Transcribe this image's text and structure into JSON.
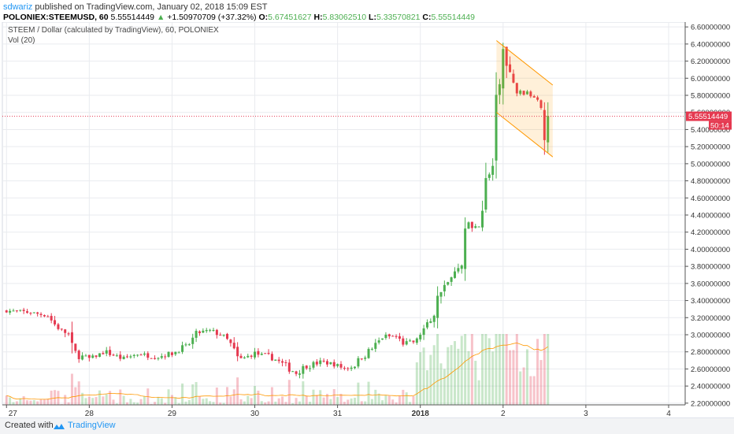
{
  "header": {
    "author": "sdwariz",
    "published_text": "published on TradingView.com, January 02, 2018 15:09 EST",
    "symbol": "POLONIEX:STEEMUSD, 60",
    "last": "5.55514449",
    "change": "+1.50970709 (+37.32%)",
    "o_label": "O:",
    "o": "5.67451627",
    "h_label": "H:",
    "h": "5.83062510",
    "l_label": "L:",
    "l": "5.33570821",
    "c_label": "C:",
    "c": "5.55514449"
  },
  "legend": {
    "title": "STEEM / Dollar (calculated by TradingView), 60, POLONIEX",
    "vol": "Vol (20)"
  },
  "price_label": "5.55514449",
  "countdown": "50:14",
  "footer": {
    "created": "Created with",
    "brand": "TradingView"
  },
  "colors": {
    "up": "#4caf50",
    "down": "#e53950",
    "channel": "#ff9800",
    "grid": "#e9ebef",
    "last_line": "#e53950",
    "volume_ma": "#ff9800"
  },
  "chart_data": {
    "type": "candlestick",
    "title": "STEEM / Dollar (calculated by TradingView), 60, POLONIEX",
    "x_ticks": [
      "27",
      "28",
      "29",
      "30",
      "31",
      "2018",
      "2",
      "3",
      "4"
    ],
    "ylim": [
      2.18,
      6.62
    ],
    "y_ticks": [
      "2.20000000",
      "2.40000000",
      "2.60000000",
      "2.80000000",
      "3.00000000",
      "3.20000000",
      "3.40000000",
      "3.60000000",
      "3.80000000",
      "4.00000000",
      "4.20000000",
      "4.40000000",
      "4.60000000",
      "4.80000000",
      "5.00000000",
      "5.20000000",
      "5.40000000",
      "5.60000000",
      "5.80000000",
      "6.00000000",
      "6.20000000",
      "6.40000000",
      "6.60000000"
    ],
    "last_price": 5.55514449,
    "close_path": [
      [
        27.0,
        3.28
      ],
      [
        27.3,
        3.26
      ],
      [
        27.5,
        3.22
      ],
      [
        27.6,
        3.1
      ],
      [
        27.75,
        3.0
      ],
      [
        27.8,
        2.78
      ],
      [
        28.0,
        2.72
      ],
      [
        28.2,
        2.8
      ],
      [
        28.4,
        2.72
      ],
      [
        28.6,
        2.78
      ],
      [
        28.8,
        2.74
      ],
      [
        29.0,
        2.78
      ],
      [
        29.2,
        2.88
      ],
      [
        29.3,
        3.02
      ],
      [
        29.45,
        3.05
      ],
      [
        29.6,
        3.0
      ],
      [
        29.7,
        2.9
      ],
      [
        29.8,
        2.7
      ],
      [
        30.0,
        2.78
      ],
      [
        30.2,
        2.74
      ],
      [
        30.4,
        2.62
      ],
      [
        30.5,
        2.55
      ],
      [
        30.6,
        2.62
      ],
      [
        30.8,
        2.68
      ],
      [
        30.95,
        2.66
      ],
      [
        31.1,
        2.6
      ],
      [
        31.2,
        2.64
      ],
      [
        31.3,
        2.74
      ],
      [
        31.4,
        2.82
      ],
      [
        31.55,
        2.98
      ],
      [
        31.7,
        2.98
      ],
      [
        31.8,
        2.9
      ],
      [
        31.95,
        2.92
      ],
      [
        32.0,
        3.02
      ],
      [
        32.15,
        3.2
      ],
      [
        32.25,
        3.55
      ],
      [
        32.35,
        3.62
      ],
      [
        32.5,
        3.85
      ],
      [
        32.55,
        4.3
      ],
      [
        32.7,
        4.25
      ],
      [
        32.8,
        4.8
      ],
      [
        32.88,
        5.0
      ],
      [
        32.92,
        5.6
      ],
      [
        32.98,
        6.22
      ],
      [
        33.0,
        6.3
      ],
      [
        33.05,
        6.1
      ],
      [
        33.15,
        5.85
      ],
      [
        33.3,
        5.82
      ],
      [
        33.45,
        5.75
      ],
      [
        33.5,
        5.4
      ],
      [
        33.55,
        5.55
      ]
    ],
    "channel": {
      "upper": [
        [
          32.92,
          6.44
        ],
        [
          33.6,
          5.92
        ]
      ],
      "lower": [
        [
          32.92,
          5.6
        ],
        [
          33.6,
          5.08
        ]
      ]
    },
    "volume": {
      "series": "Vol (20)"
    }
  }
}
